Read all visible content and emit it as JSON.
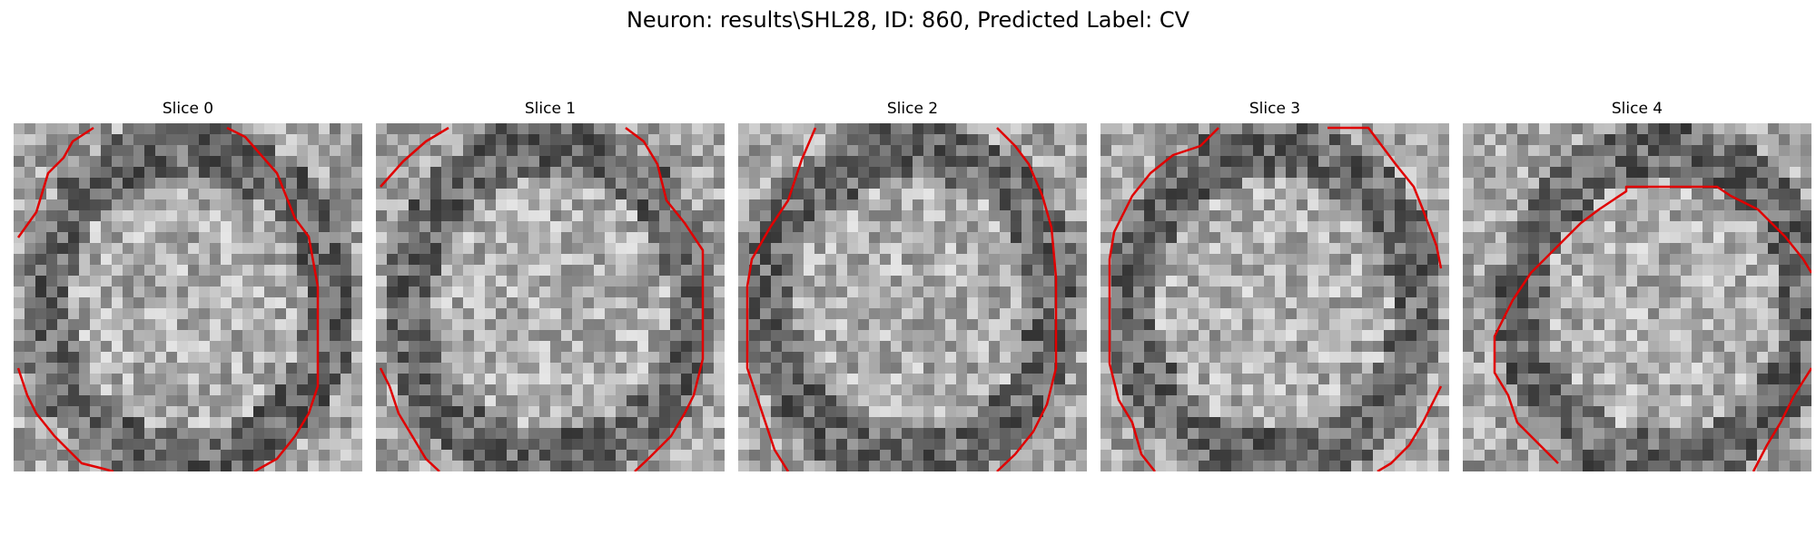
{
  "figure": {
    "title": "Neuron: results\\SHL28, ID: 860, Predicted Label: CV"
  },
  "panels": [
    {
      "title": "Slice 0",
      "contour_color": "#e00000"
    },
    {
      "title": "Slice 1",
      "contour_color": "#e00000"
    },
    {
      "title": "Slice 2",
      "contour_color": "#e00000"
    },
    {
      "title": "Slice 3",
      "contour_color": "#e00000"
    },
    {
      "title": "Slice 4",
      "contour_color": "#e00000"
    }
  ],
  "image": {
    "colormap": "grayscale",
    "grid_cells": 32
  }
}
